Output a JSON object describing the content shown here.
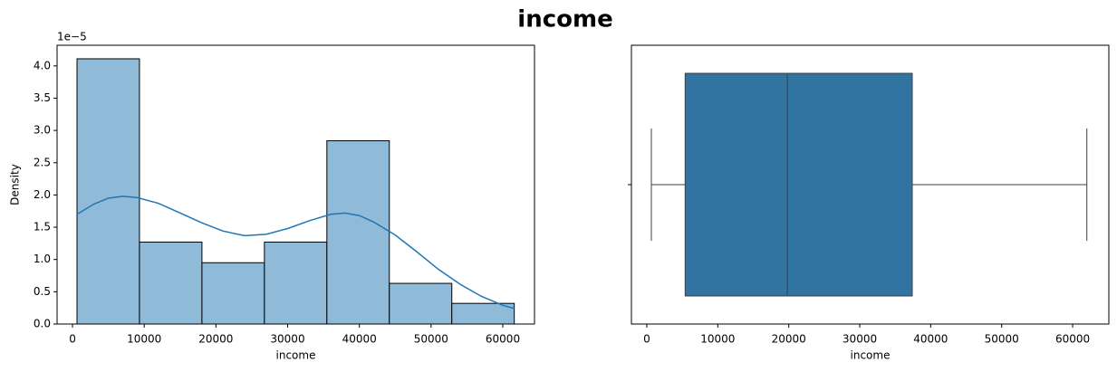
{
  "title": "income",
  "chart_data": [
    {
      "type": "histogram",
      "bins": [
        630,
        9340,
        18050,
        26760,
        35470,
        44180,
        52890,
        61600
      ],
      "values": [
        4.11,
        1.27,
        0.95,
        1.27,
        2.84,
        0.63,
        0.32
      ],
      "color": "#8fbbd9",
      "edgecolor": "#000000",
      "kde": {
        "color": "#1f77b4",
        "x": [
          630,
          3000,
          5000,
          7000,
          9000,
          12000,
          15000,
          18000,
          21000,
          24000,
          27000,
          30000,
          33000,
          36000,
          38000,
          40000,
          42000,
          45000,
          48000,
          51000,
          54000,
          57000,
          60000,
          61600
        ],
        "values": [
          1.7,
          1.86,
          1.95,
          1.98,
          1.96,
          1.87,
          1.72,
          1.57,
          1.44,
          1.37,
          1.39,
          1.48,
          1.6,
          1.7,
          1.72,
          1.68,
          1.58,
          1.38,
          1.12,
          0.85,
          0.62,
          0.43,
          0.29,
          0.24
        ]
      },
      "xlabel": "income",
      "ylabel": "Density",
      "offset_label": "1e−5",
      "xlim": [
        -2150,
        64420
      ],
      "xticks": [
        0,
        10000,
        20000,
        30000,
        40000,
        50000,
        60000
      ],
      "ylim": [
        0,
        4.32
      ],
      "yticks": [
        {
          "value": 0,
          "label": "0.0"
        },
        {
          "value": 0.5,
          "label": "0.5"
        },
        {
          "value": 1,
          "label": "1.0"
        },
        {
          "value": 1.5,
          "label": "1.5"
        },
        {
          "value": 2,
          "label": "2.0"
        },
        {
          "value": 2.5,
          "label": "2.5"
        },
        {
          "value": 3,
          "label": "3.0"
        },
        {
          "value": 3.5,
          "label": "3.5"
        },
        {
          "value": 4,
          "label": "4.0"
        }
      ]
    },
    {
      "type": "box",
      "stats": {
        "whislo": 640,
        "q1": 5400,
        "median": 19800,
        "q3": 37400,
        "whishi": 62000
      },
      "color": "#3274a1",
      "linecolor": "#3f3f3f",
      "xlabel": "income",
      "xlim": [
        -2170,
        65100
      ],
      "xticks": [
        0,
        10000,
        20000,
        30000,
        40000,
        50000,
        60000
      ]
    }
  ]
}
